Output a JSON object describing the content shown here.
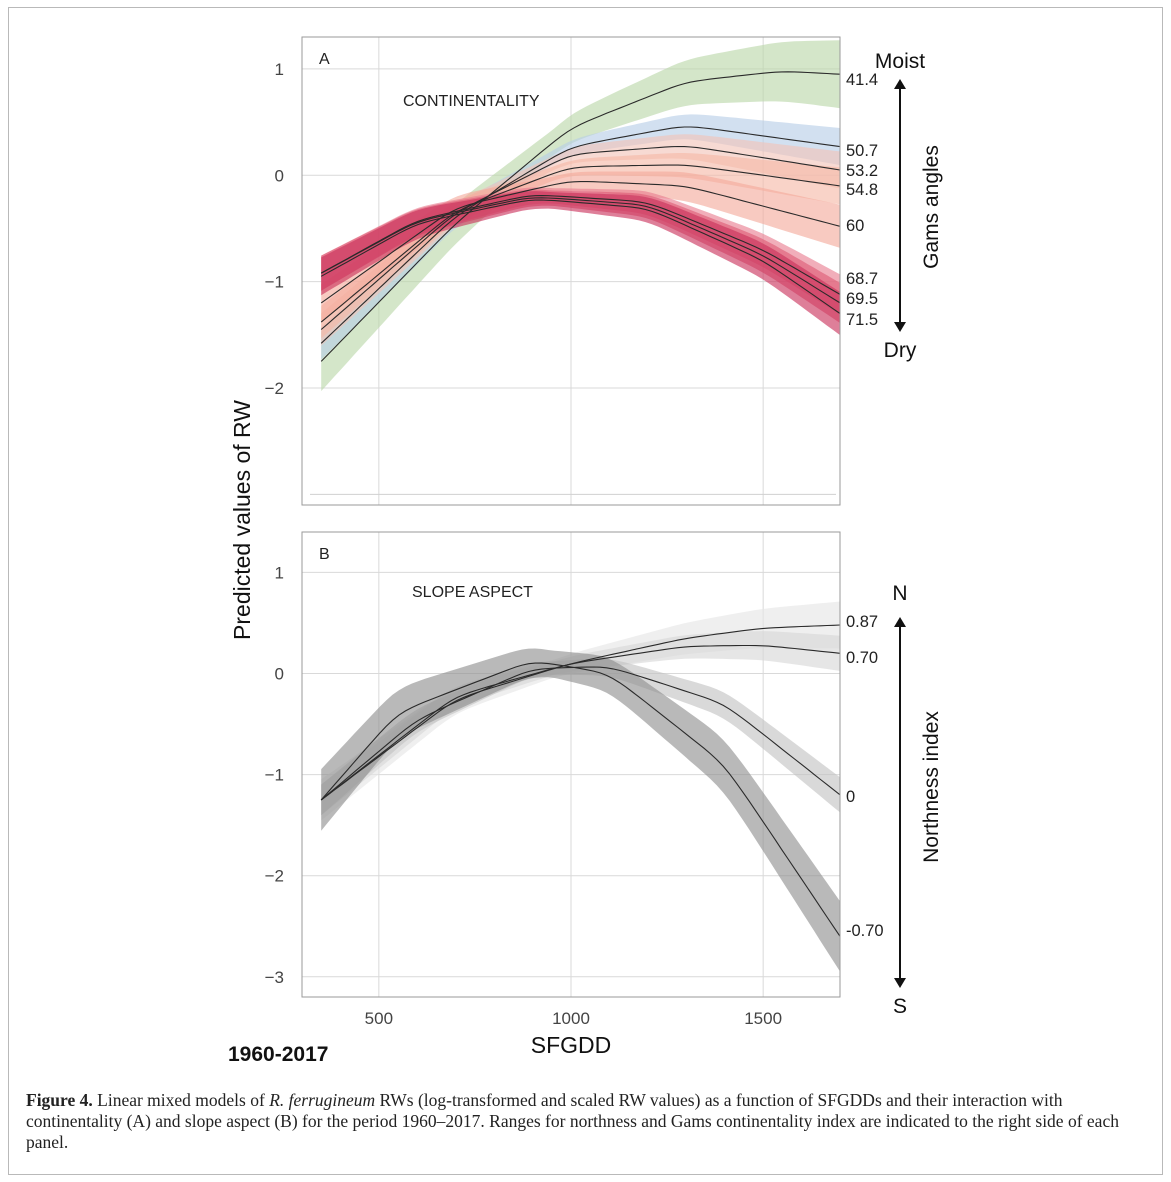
{
  "figure": {
    "period_label": "1960-2017",
    "caption_label": "Figure 4.",
    "caption_pre": " Linear mixed models of ",
    "caption_species": "R. ferrugineum",
    "caption_post": " RWs (log-transformed and scaled RW values) as a function of SFGDDs and their interaction with continentality (A) and slope aspect (B) for the period 1960–2017. Ranges for northness and Gams continentality index are indicated to the right side of each panel."
  },
  "chart_data": [
    {
      "type": "line",
      "panel_letter": "A",
      "panel_title": "CONTINENTALITY",
      "ylabel": "Predicted values of RW",
      "xlabel": "SFGDD",
      "xlim": [
        300,
        1700
      ],
      "ylim": [
        -3.1,
        1.3
      ],
      "xticks": [
        500,
        1000,
        1500
      ],
      "yticks": [
        1,
        0,
        -1,
        -2
      ],
      "ytick_labels": [
        "1",
        "0",
        "−1",
        "−2"
      ],
      "grid": true,
      "legend_title": "Gams angles",
      "legend_top": "Moist",
      "legend_bottom": "Dry",
      "legend_placement": "right",
      "series": [
        {
          "name": "41.4",
          "x": [
            350,
            700,
            1000,
            1300,
            1550,
            1700
          ],
          "y": [
            -1.75,
            -0.45,
            0.45,
            0.88,
            0.98,
            0.95
          ],
          "ci": 0.22,
          "band_color": "#b9d6a8"
        },
        {
          "name": "50.7",
          "x": [
            350,
            700,
            1000,
            1300,
            1700
          ],
          "y": [
            -1.58,
            -0.38,
            0.27,
            0.47,
            0.27
          ],
          "ci": 0.12,
          "band_color": "#b6cde6"
        },
        {
          "name": "53.2",
          "x": [
            350,
            700,
            1000,
            1300,
            1700
          ],
          "y": [
            -1.45,
            -0.35,
            0.2,
            0.28,
            0.05
          ],
          "ci": 0.12,
          "band_color": "#f2c4b8"
        },
        {
          "name": "54.8",
          "x": [
            350,
            700,
            1000,
            1300,
            1700
          ],
          "y": [
            -1.38,
            -0.33,
            0.08,
            0.1,
            -0.1
          ],
          "ci": 0.12,
          "band_color": "#f5b8a6"
        },
        {
          "name": "60",
          "x": [
            350,
            700,
            1000,
            1300,
            1700
          ],
          "y": [
            -1.2,
            -0.3,
            -0.05,
            -0.1,
            -0.48
          ],
          "ci": 0.14,
          "band_color": "#f4a99b"
        },
        {
          "name": "68.7",
          "x": [
            350,
            600,
            900,
            1200,
            1500,
            1700
          ],
          "y": [
            -0.92,
            -0.42,
            -0.18,
            -0.25,
            -0.7,
            -1.12
          ],
          "ci": 0.13,
          "band_color": "#e87c8f"
        },
        {
          "name": "69.5",
          "x": [
            350,
            600,
            900,
            1200,
            1500,
            1700
          ],
          "y": [
            -0.92,
            -0.43,
            -0.2,
            -0.28,
            -0.75,
            -1.2
          ],
          "ci": 0.13,
          "band_color": "#dd5a74"
        },
        {
          "name": "71.5",
          "x": [
            350,
            600,
            900,
            1200,
            1500,
            1700
          ],
          "y": [
            -0.95,
            -0.45,
            -0.22,
            -0.31,
            -0.8,
            -1.3
          ],
          "ci": 0.14,
          "band_color": "#c9305a"
        }
      ]
    },
    {
      "type": "line",
      "panel_letter": "B",
      "panel_title": "SLOPE ASPECT",
      "ylabel": "Predicted values of RW",
      "xlabel": "SFGDD",
      "xlim": [
        300,
        1700
      ],
      "ylim": [
        -3.2,
        1.4
      ],
      "xticks": [
        500,
        1000,
        1500
      ],
      "xtick_labels": [
        "500",
        "1000",
        "1500"
      ],
      "yticks": [
        1,
        0,
        -1,
        -2,
        -3
      ],
      "ytick_labels": [
        "1",
        "0",
        "−1",
        "−2",
        "−3"
      ],
      "grid": true,
      "legend_title": "Northness index",
      "legend_top": "N",
      "legend_bottom": "S",
      "legend_placement": "right",
      "series": [
        {
          "name": "0.87",
          "x": [
            350,
            700,
            1000,
            1300,
            1500,
            1700
          ],
          "y": [
            -1.25,
            -0.25,
            0.1,
            0.35,
            0.45,
            0.48
          ],
          "ci": 0.16,
          "band_color": "#e5e5e5"
        },
        {
          "name": "0.70",
          "x": [
            350,
            700,
            1000,
            1300,
            1500,
            1700
          ],
          "y": [
            -1.25,
            -0.22,
            0.1,
            0.27,
            0.28,
            0.2
          ],
          "ci": 0.12,
          "band_color": "#d6d6d6"
        },
        {
          "name": "0",
          "x": [
            350,
            600,
            900,
            1100,
            1400,
            1700
          ],
          "y": [
            -1.25,
            -0.45,
            0.05,
            0.07,
            -0.3,
            -1.2
          ],
          "ci": 0.12,
          "band_color": "#c2c2c2"
        },
        {
          "name": "-0.70",
          "x": [
            350,
            550,
            900,
            1100,
            1400,
            1700
          ],
          "y": [
            -1.25,
            -0.38,
            0.13,
            0.0,
            -0.9,
            -2.6
          ],
          "ci": 0.24,
          "band_color": "#8e8e8e"
        }
      ]
    }
  ]
}
